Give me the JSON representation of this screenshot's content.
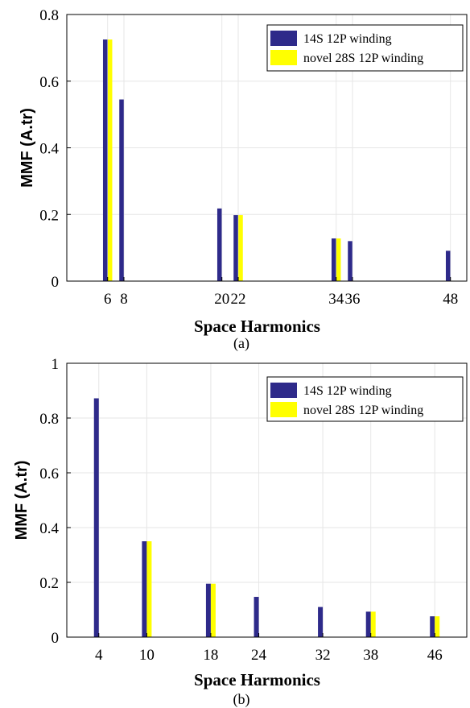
{
  "colors": {
    "series1": "#2e2a8a",
    "series2": "#ffff00"
  },
  "chart_data": [
    {
      "type": "bar",
      "panel_label": "(a)",
      "xlabel": "Space Harmonics",
      "ylabel": "MMF (A.tr)",
      "ylim": [
        0,
        0.8
      ],
      "yticks": [
        "0",
        "0.2",
        "0.4",
        "0.6",
        "0.8"
      ],
      "xlim": [
        1,
        50
      ],
      "xticks": [
        "6",
        "8",
        "20",
        "22",
        "34",
        "36",
        "48"
      ],
      "grid": true,
      "legend_position": "top-right",
      "series": [
        {
          "name": "14S 12P winding",
          "points": [
            [
              6,
              0.725
            ],
            [
              8,
              0.545
            ],
            [
              20,
              0.218
            ],
            [
              22,
              0.198
            ],
            [
              34,
              0.128
            ],
            [
              36,
              0.12
            ],
            [
              48,
              0.091
            ]
          ]
        },
        {
          "name": "novel 28S 12P winding",
          "points": [
            [
              6,
              0.725
            ],
            [
              22,
              0.198
            ],
            [
              34,
              0.128
            ]
          ]
        }
      ]
    },
    {
      "type": "bar",
      "panel_label": "(b)",
      "xlabel": "Space Harmonics",
      "ylabel": "MMF (A.tr)",
      "ylim": [
        0,
        1
      ],
      "yticks": [
        "0",
        "0.2",
        "0.4",
        "0.6",
        "0.8",
        "1"
      ],
      "xlim": [
        0,
        50
      ],
      "xticks": [
        "4",
        "10",
        "18",
        "24",
        "32",
        "38",
        "46"
      ],
      "grid": true,
      "legend_position": "top-right",
      "series": [
        {
          "name": "14S 12P winding",
          "points": [
            [
              4,
              0.872
            ],
            [
              10,
              0.35
            ],
            [
              18,
              0.195
            ],
            [
              24,
              0.147
            ],
            [
              32,
              0.11
            ],
            [
              38,
              0.093
            ],
            [
              46,
              0.076
            ]
          ]
        },
        {
          "name": "novel 28S 12P winding",
          "points": [
            [
              10,
              0.35
            ],
            [
              18,
              0.195
            ],
            [
              38,
              0.093
            ],
            [
              46,
              0.076
            ]
          ]
        }
      ]
    }
  ]
}
